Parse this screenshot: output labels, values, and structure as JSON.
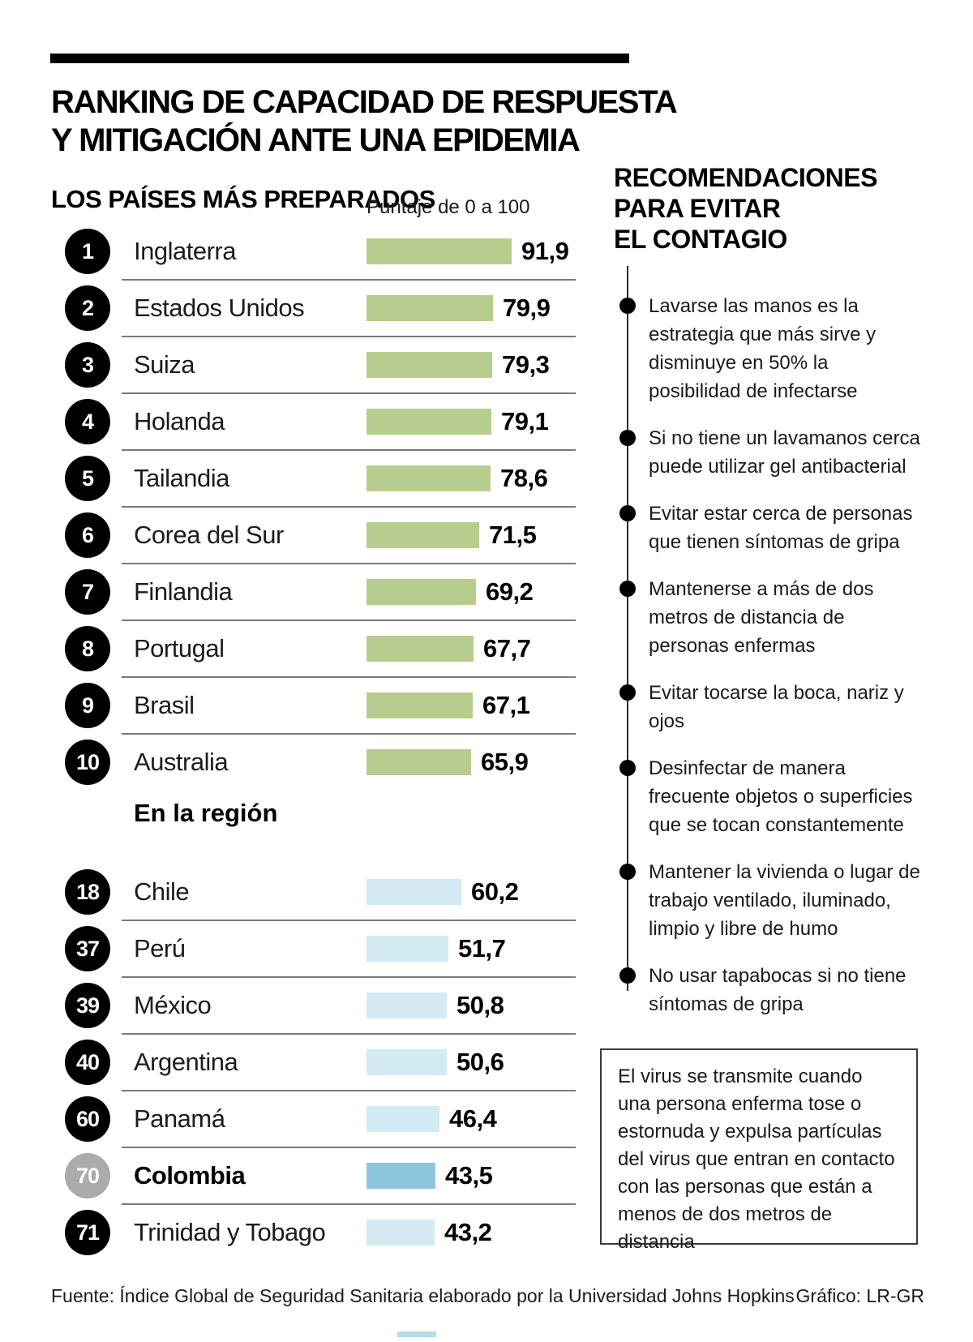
{
  "header": {
    "title_line1": "RANKING DE CAPACIDAD DE RESPUESTA",
    "title_line2": "Y MITIGACIÓN ANTE UNA EPIDEMIA"
  },
  "left": {
    "section_title": "LOS PAÍSES MÁS PREPARADOS",
    "scale_label": "Puntaje de 0 a 100",
    "region_title": "En la región"
  },
  "right": {
    "title_lines": [
      "RECOMENDACIONES",
      "PARA EVITAR",
      "EL CONTAGIO"
    ],
    "bullets": [
      "Lavarse las manos es la estrategia que más sirve y disminuye en 50% la posibilidad de infectarse",
      "Si no tiene un lavamanos cerca puede utilizar gel antibacterial",
      "Evitar estar cerca de personas que tienen síntomas de gripa",
      "Mantenerse a más de dos metros de distancia de personas enfermas",
      "Evitar tocarse la boca, nariz y ojos",
      "Desinfectar de manera frecuente objetos o superficies que se tocan constantemente",
      "Mantener la vivienda o lugar de trabajo ventilado, iluminado, limpio y libre de humo",
      "No usar tapabocas si no tiene síntomas de gripa"
    ],
    "note": "El virus se transmite cuando una persona enferma tose o estornuda y expulsa partículas del virus que entran en contacto con las personas que están a menos de dos metros de distancia"
  },
  "footer": {
    "source": "Fuente: Índice Global de Seguridad Sanitaria elaborado por la Universidad Johns Hopkins",
    "credit": "Gráfico: LR-GR"
  },
  "chart_data": {
    "type": "bar",
    "orientation": "horizontal",
    "title": "RANKING DE CAPACIDAD DE RESPUESTA Y MITIGACIÓN ANTE UNA EPIDEMIA",
    "scale_label": "Puntaje de 0 a 100",
    "xlim": [
      0,
      100
    ],
    "colors": {
      "top_bar": "#b7cd8d",
      "region_bar": "#d3ebf2",
      "highlight_bar": "#8cc6dc",
      "badge": "#000000",
      "highlight_badge": "#ababab"
    },
    "groups": [
      {
        "name": "LOS PAÍSES MÁS PREPARADOS",
        "bar_color": "#b7cd8d",
        "rows": [
          {
            "rank": "1",
            "country": "Inglaterra",
            "value": 91.9,
            "label": "91,9"
          },
          {
            "rank": "2",
            "country": "Estados Unidos",
            "value": 79.9,
            "label": "79,9"
          },
          {
            "rank": "3",
            "country": "Suiza",
            "value": 79.3,
            "label": "79,3"
          },
          {
            "rank": "4",
            "country": "Holanda",
            "value": 79.1,
            "label": "79,1"
          },
          {
            "rank": "5",
            "country": "Tailandia",
            "value": 78.6,
            "label": "78,6"
          },
          {
            "rank": "6",
            "country": "Corea del Sur",
            "value": 71.5,
            "label": "71,5"
          },
          {
            "rank": "7",
            "country": "Finlandia",
            "value": 69.2,
            "label": "69,2"
          },
          {
            "rank": "8",
            "country": "Portugal",
            "value": 67.7,
            "label": "67,7"
          },
          {
            "rank": "9",
            "country": "Brasil",
            "value": 67.1,
            "label": "67,1"
          },
          {
            "rank": "10",
            "country": "Australia",
            "value": 65.9,
            "label": "65,9"
          }
        ]
      },
      {
        "name": "En la región",
        "bar_color": "#d3ebf2",
        "rows": [
          {
            "rank": "18",
            "country": "Chile",
            "value": 60.2,
            "label": "60,2"
          },
          {
            "rank": "37",
            "country": "Perú",
            "value": 51.7,
            "label": "51,7"
          },
          {
            "rank": "39",
            "country": "México",
            "value": 50.8,
            "label": "50,8"
          },
          {
            "rank": "40",
            "country": "Argentina",
            "value": 50.6,
            "label": "50,6"
          },
          {
            "rank": "60",
            "country": "Panamá",
            "value": 46.4,
            "label": "46,4"
          },
          {
            "rank": "70",
            "country": "Colombia",
            "value": 43.5,
            "label": "43,5",
            "highlight": true
          },
          {
            "rank": "71",
            "country": "Trinidad y Tobago",
            "value": 43.2,
            "label": "43,2"
          }
        ]
      }
    ]
  }
}
